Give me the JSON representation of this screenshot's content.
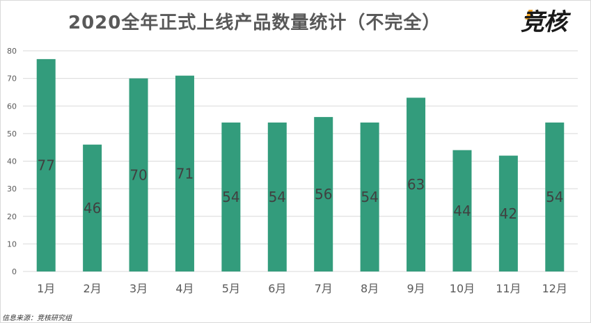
{
  "chart_data": {
    "type": "bar",
    "title": "2020全年正式上线产品数量统计（不完全）",
    "categories": [
      "1月",
      "2月",
      "3月",
      "4月",
      "5月",
      "6月",
      "7月",
      "8月",
      "9月",
      "10月",
      "11月",
      "12月"
    ],
    "values": [
      77,
      46,
      70,
      71,
      54,
      54,
      56,
      54,
      63,
      44,
      42,
      54
    ],
    "ylim": [
      0,
      80
    ],
    "yticks": [
      0,
      10,
      20,
      30,
      40,
      50,
      60,
      70,
      80
    ],
    "grid": true,
    "legend": "none",
    "bar_color": "#339c7c"
  },
  "logo_text": "竞核",
  "source_text": "信息来源：竞核研究组",
  "colors": {
    "bar": "#339c7c",
    "grid": "#d9d9d9",
    "title": "#595959"
  }
}
